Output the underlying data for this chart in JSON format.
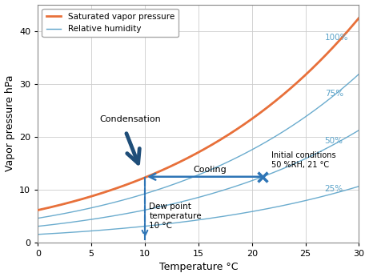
{
  "xlabel": "Temperature °C",
  "ylabel": "Vapor pressure hPa",
  "xlim": [
    0,
    30
  ],
  "ylim": [
    0,
    45
  ],
  "xticks": [
    0,
    5,
    10,
    15,
    20,
    25,
    30
  ],
  "yticks": [
    0,
    10,
    20,
    30,
    40
  ],
  "rh_levels": [
    1.0,
    0.75,
    0.5,
    0.25
  ],
  "rh_labels": [
    "100%",
    "75%",
    "50%",
    "25%"
  ],
  "orange_color": "#E8703A",
  "blue_rh_color": "#5BA3C9",
  "dark_blue": "#1F4E79",
  "medium_blue": "#2E75B6",
  "initial_T": 21,
  "initial_RH": 0.5,
  "dew_point_T": 10,
  "background": "#FFFFFF",
  "grid_color": "#CCCCCC",
  "figsize": [
    4.61,
    3.46
  ],
  "dpi": 100
}
